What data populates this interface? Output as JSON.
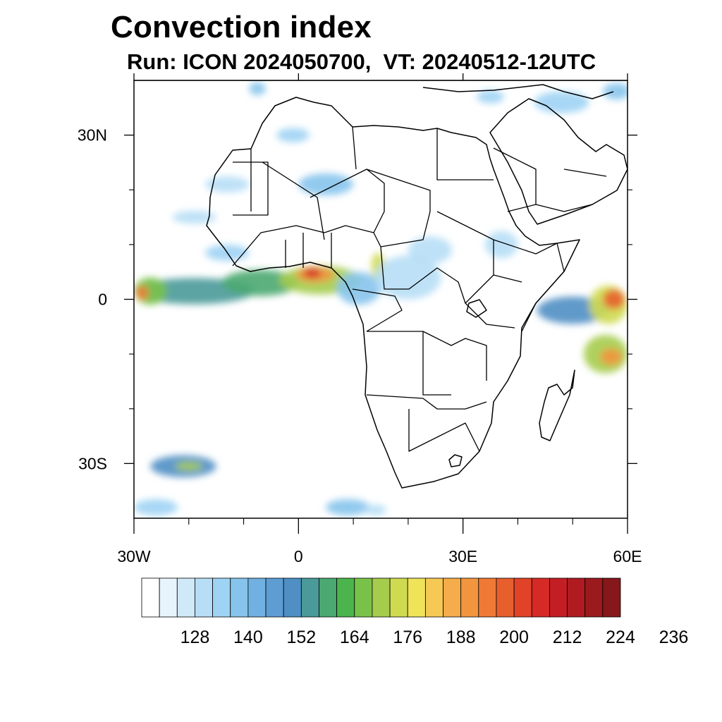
{
  "title": "Convection index",
  "subtitle": "Run: ICON 2024050700,  VT: 20240512-12UTC",
  "map": {
    "lon_range": [
      -30,
      60
    ],
    "lat_range": [
      -40,
      40
    ],
    "lat_ticks": [
      {
        "value": 30,
        "label": "30N"
      },
      {
        "value": 0,
        "label": "0"
      },
      {
        "value": -30,
        "label": "30S"
      }
    ],
    "lon_ticks": [
      {
        "value": -30,
        "label": "30W"
      },
      {
        "value": 0,
        "label": "0"
      },
      {
        "value": 30,
        "label": "30E"
      },
      {
        "value": 60,
        "label": "60E"
      }
    ],
    "minor_lon_ticks": [
      -20,
      -10,
      10,
      20,
      40,
      50
    ],
    "minor_lat_ticks": [
      20,
      10,
      -10,
      -20
    ]
  },
  "colorbar": {
    "colors": [
      "#ffffff",
      "#e8f4fb",
      "#cfe9f8",
      "#b7def6",
      "#9fd3f4",
      "#86c4ec",
      "#71b1e2",
      "#5d9dd4",
      "#4f8fc4",
      "#4a9a9a",
      "#4aa870",
      "#4bb44c",
      "#79c24a",
      "#a5cc4c",
      "#cfda50",
      "#efe35a",
      "#f6c955",
      "#f4ad4a",
      "#f2953f",
      "#ee7a36",
      "#e85f2e",
      "#e04328",
      "#d52a26",
      "#c41e25",
      "#b01b22",
      "#9a1a1e",
      "#86171a"
    ],
    "labels": [
      "128",
      "140",
      "152",
      "164",
      "176",
      "188",
      "200",
      "212",
      "224",
      "236"
    ],
    "label_start_edge": 3,
    "label_step_edges": 3
  },
  "convection_blobs": [
    {
      "lon": -19,
      "lat": 1.5,
      "rx": 11,
      "ry": 2.4,
      "level": 9
    },
    {
      "lon": -27,
      "lat": 1.5,
      "rx": 3,
      "ry": 2.5,
      "level": 12
    },
    {
      "lon": -28.5,
      "lat": 1.2,
      "rx": 1.2,
      "ry": 1.3,
      "level": 19
    },
    {
      "lon": -7,
      "lat": 3,
      "rx": 7,
      "ry": 2.4,
      "level": 10
    },
    {
      "lon": 4,
      "lat": 3.5,
      "rx": 7.5,
      "ry": 2.6,
      "level": 13
    },
    {
      "lon": 3,
      "lat": 4.5,
      "rx": 3.5,
      "ry": 1.4,
      "level": 18
    },
    {
      "lon": 2.5,
      "lat": 4.8,
      "rx": 1.6,
      "ry": 0.9,
      "level": 22
    },
    {
      "lon": 11,
      "lat": 2,
      "rx": 4,
      "ry": 3,
      "level": 5
    },
    {
      "lon": -13,
      "lat": 8.5,
      "rx": 4,
      "ry": 1.5,
      "level": 4
    },
    {
      "lon": 14.5,
      "lat": 6,
      "rx": 1.2,
      "ry": 2.5,
      "level": 14
    },
    {
      "lon": 20,
      "lat": 4,
      "rx": 6,
      "ry": 4,
      "level": 3
    },
    {
      "lon": 24,
      "lat": 9,
      "rx": 4,
      "ry": 2.5,
      "level": 3
    },
    {
      "lon": 37,
      "lat": 10,
      "rx": 3,
      "ry": 2.5,
      "level": 3
    },
    {
      "lon": 50,
      "lat": -2,
      "rx": 6.5,
      "ry": 2.5,
      "level": 8
    },
    {
      "lon": 56.5,
      "lat": -1,
      "rx": 3.5,
      "ry": 3.5,
      "level": 14
    },
    {
      "lon": 57.5,
      "lat": 0,
      "rx": 2,
      "ry": 1.8,
      "level": 20
    },
    {
      "lon": 56,
      "lat": -10,
      "rx": 4,
      "ry": 3.5,
      "level": 13
    },
    {
      "lon": 57,
      "lat": -10.5,
      "rx": 2,
      "ry": 1.5,
      "level": 18
    },
    {
      "lon": -21,
      "lat": -30.5,
      "rx": 6,
      "ry": 2,
      "level": 8
    },
    {
      "lon": -20,
      "lat": -30.5,
      "rx": 2.5,
      "ry": 0.8,
      "level": 13
    },
    {
      "lon": -26,
      "lat": -38,
      "rx": 4,
      "ry": 1.5,
      "level": 4
    },
    {
      "lon": 9,
      "lat": -38,
      "rx": 4,
      "ry": 1.5,
      "level": 5
    },
    {
      "lon": 14,
      "lat": -38.5,
      "rx": 2,
      "ry": 1,
      "level": 3
    },
    {
      "lon": -19,
      "lat": 15,
      "rx": 4,
      "ry": 1.2,
      "level": 3
    },
    {
      "lon": -1,
      "lat": 30,
      "rx": 3,
      "ry": 1.3,
      "level": 4
    },
    {
      "lon": 5,
      "lat": 21,
      "rx": 5,
      "ry": 2,
      "level": 5
    },
    {
      "lon": -13,
      "lat": 21,
      "rx": 4,
      "ry": 1.5,
      "level": 3
    },
    {
      "lon": 48,
      "lat": 36,
      "rx": 5,
      "ry": 2,
      "level": 4
    },
    {
      "lon": 58,
      "lat": 38,
      "rx": 2.5,
      "ry": 1.5,
      "level": 5
    },
    {
      "lon": 35,
      "lat": 37,
      "rx": 2.5,
      "ry": 1.2,
      "level": 4
    },
    {
      "lon": -7.5,
      "lat": 38.5,
      "rx": 1.5,
      "ry": 1.2,
      "level": 5
    }
  ]
}
